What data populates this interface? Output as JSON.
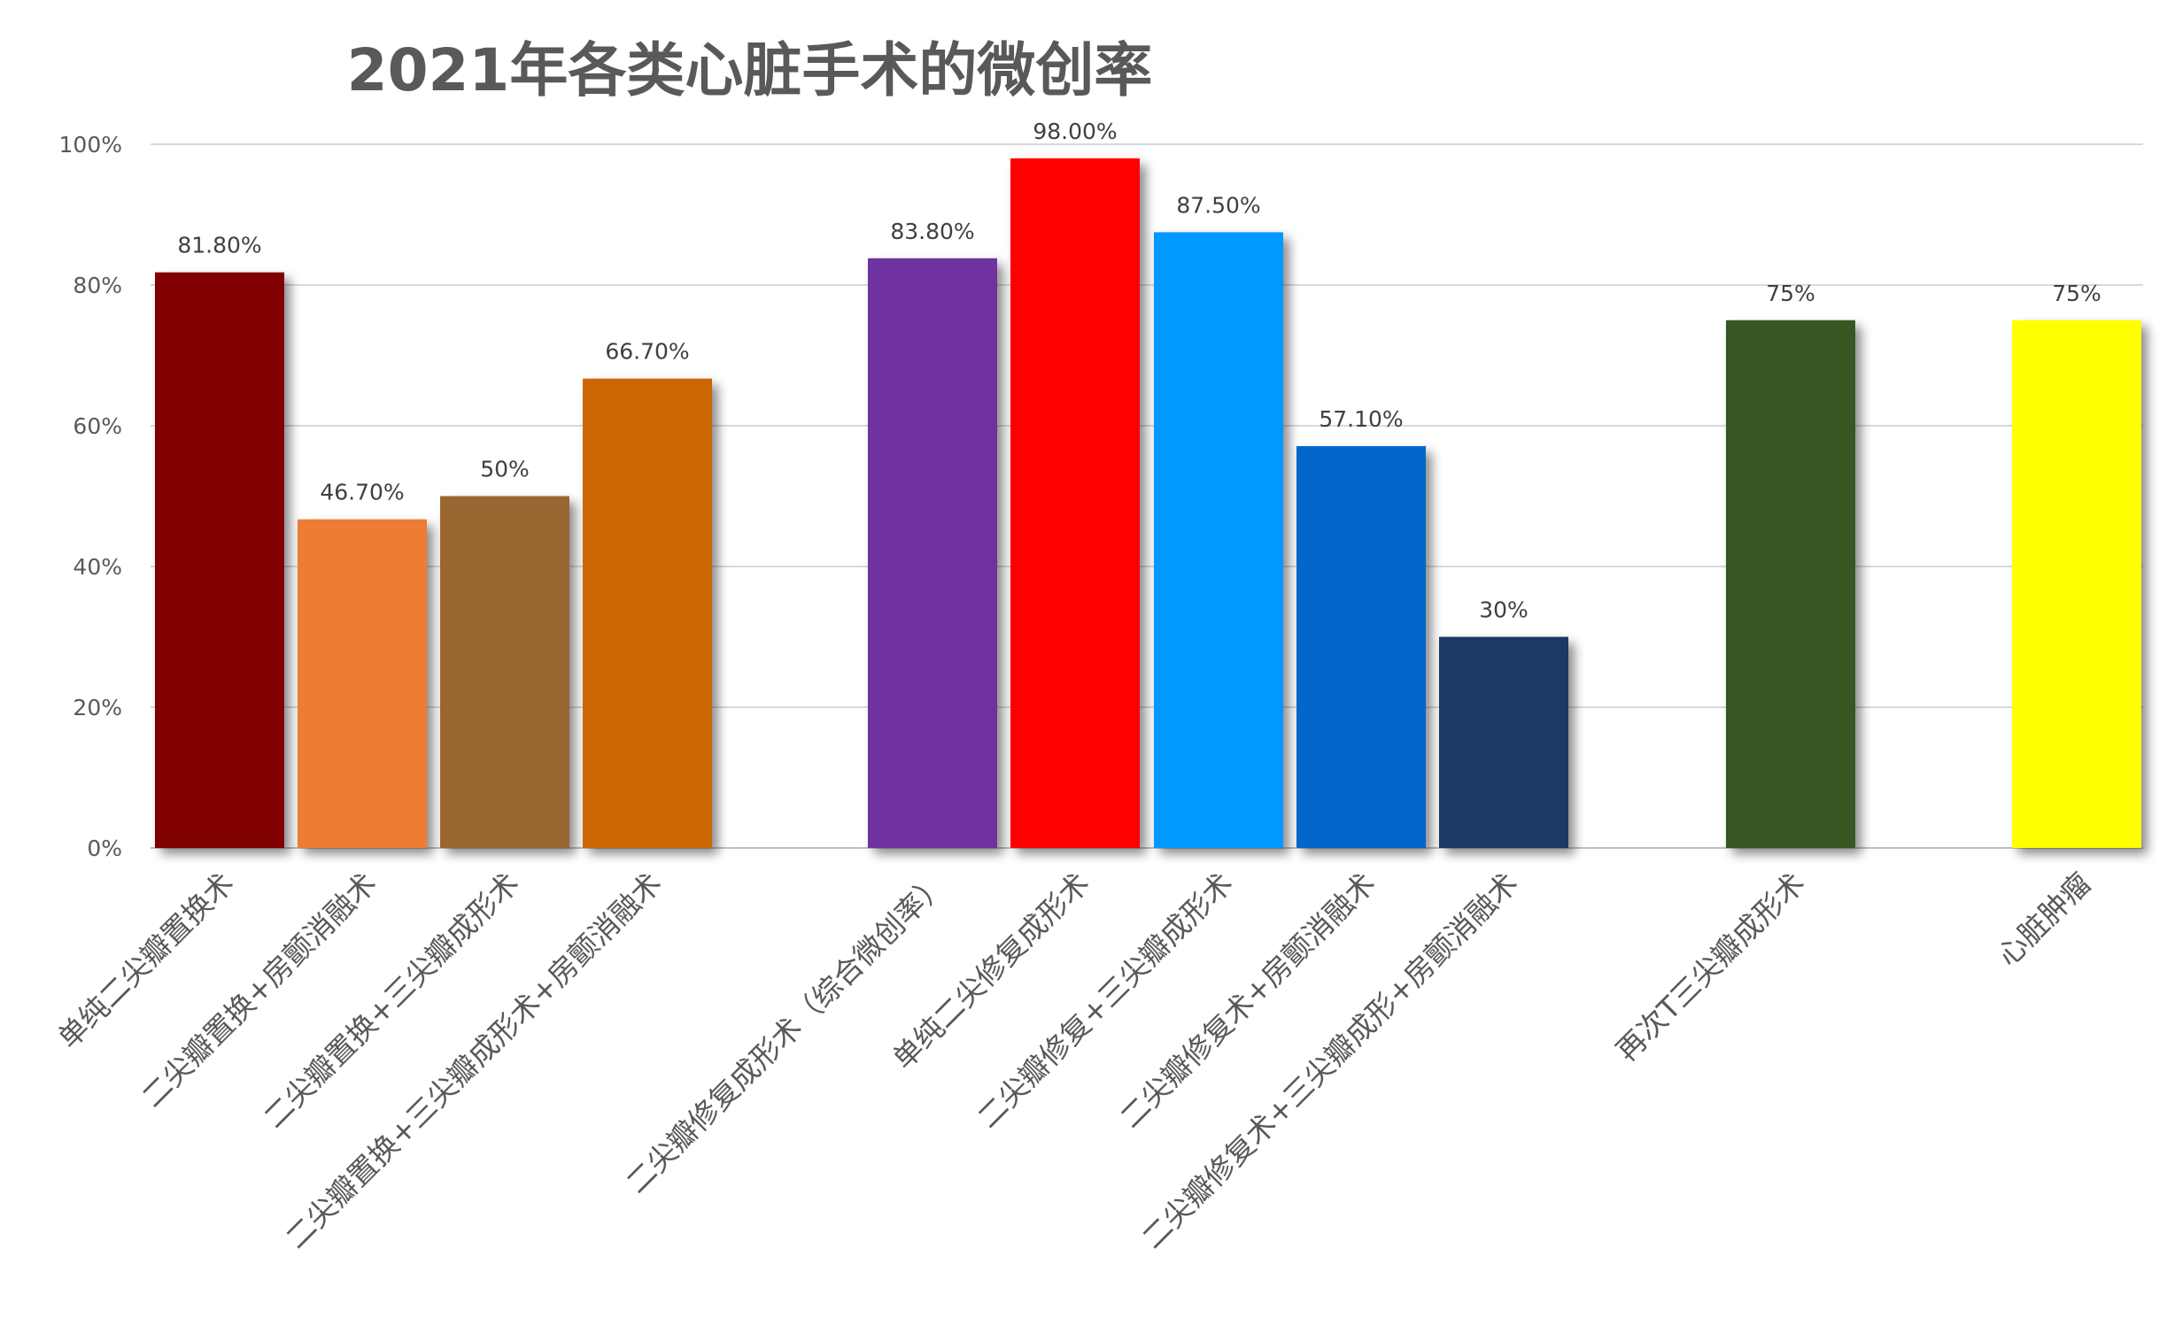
{
  "chart_data": {
    "type": "bar",
    "title": "2021年各类心脏手术的微创率",
    "xlabel": "",
    "ylabel": "",
    "ylim": [
      0,
      100
    ],
    "yticks": [
      "0%",
      "20%",
      "40%",
      "60%",
      "80%",
      "100%"
    ],
    "grid": true,
    "legend": "none",
    "categories": [
      "单纯二尖瓣置换术",
      "二尖瓣置换+房颤消融术",
      "二尖瓣置换+三尖瓣成形术",
      "二尖瓣置换+三尖瓣成形术+房颤消融术",
      "二尖瓣修复成形术（综合微创率）",
      "单纯二尖修复成形术",
      "二尖瓣修复+三尖瓣成形术",
      "二尖瓣修复术+房颤消融术",
      "二尖瓣修复术+三尖瓣成形+房颤消融术",
      "再次T三尖瓣成形术",
      "心脏肿瘤"
    ],
    "values": [
      81.8,
      46.7,
      50,
      66.7,
      83.8,
      98.0,
      87.5,
      57.1,
      30,
      75,
      75
    ],
    "data_labels": [
      "81.80%",
      "46.70%",
      "50%",
      "66.70%",
      "83.80%",
      "98.00%",
      "87.50%",
      "57.10%",
      "30%",
      "75%",
      "75%"
    ],
    "colors": [
      "#800000",
      "#ED7D31",
      "#996633",
      "#CC6600",
      "#7030A0",
      "#FF0000",
      "#0099FF",
      "#0066CC",
      "#1F3864",
      "#375623",
      "#FFFF00"
    ]
  }
}
